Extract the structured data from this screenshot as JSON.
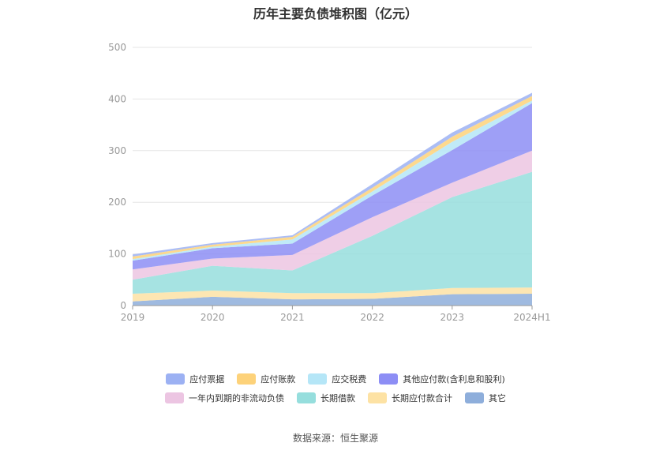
{
  "chart_data": {
    "type": "area",
    "stacked": true,
    "title": "历年主要负债堆积图（亿元）",
    "categories": [
      "2019",
      "2020",
      "2021",
      "2022",
      "2023",
      "2024H1"
    ],
    "ylim": [
      0,
      500
    ],
    "yticks": [
      0,
      100,
      200,
      300,
      400,
      500
    ],
    "grid": true,
    "legend_position": "bottom",
    "series": [
      {
        "name": "其它",
        "color": "#8eaedb",
        "values": [
          8,
          17,
          12,
          13,
          22,
          23
        ]
      },
      {
        "name": "长期应付款合计",
        "color": "#fde2a4",
        "values": [
          15,
          12,
          12,
          11,
          12,
          12
        ]
      },
      {
        "name": "长期借款",
        "color": "#96dedd",
        "values": [
          27,
          48,
          44,
          111,
          176,
          224
        ]
      },
      {
        "name": "一年内到期的非流动负债",
        "color": "#ecc5e2",
        "values": [
          20,
          14,
          30,
          36,
          28,
          41
        ]
      },
      {
        "name": "其他应付款(含利息和股利)",
        "color": "#8d8ef5",
        "values": [
          17,
          20,
          22,
          42,
          63,
          92
        ]
      },
      {
        "name": "应交税费",
        "color": "#b5e6f7",
        "values": [
          3,
          3,
          8,
          8,
          16,
          5
        ]
      },
      {
        "name": "应付账款",
        "color": "#fdd27a",
        "values": [
          5,
          4,
          5,
          7,
          10,
          9
        ]
      },
      {
        "name": "应付票据",
        "color": "#9cb1f3",
        "values": [
          4,
          3,
          3,
          7,
          8,
          6
        ]
      }
    ],
    "legend_order": [
      "应付票据",
      "应付账款",
      "应交税费",
      "其他应付款(含利息和股利)",
      "一年内到期的非流动负债",
      "长期借款",
      "长期应付款合计",
      "其它"
    ]
  },
  "source_text": "数据来源：恒生聚源"
}
